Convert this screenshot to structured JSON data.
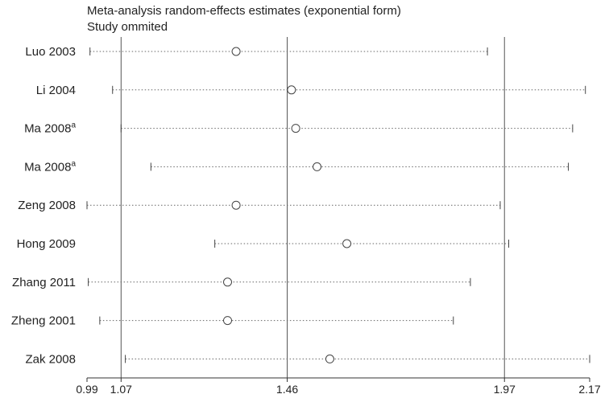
{
  "chart_data": {
    "type": "scatter",
    "title": "Meta-analysis random-effects estimates (exponential form)",
    "subtitle": "Study ommited",
    "xlabel": "",
    "ylabel": "",
    "xlim": [
      0.99,
      2.17
    ],
    "reference_lines": [
      1.07,
      1.46,
      1.97
    ],
    "x_ticks": [
      "0.99",
      "1.07",
      "1.46",
      "1.97",
      "2.17"
    ],
    "studies": [
      {
        "label": "Luo 2003",
        "sup": "",
        "estimate": 1.34,
        "ci_low": 0.997,
        "ci_high": 1.93
      },
      {
        "label": "Li 2004",
        "sup": "",
        "estimate": 1.47,
        "ci_low": 1.05,
        "ci_high": 2.16
      },
      {
        "label": "Ma 2008",
        "sup": "a",
        "estimate": 1.48,
        "ci_low": 1.07,
        "ci_high": 2.13
      },
      {
        "label": "Ma 2008",
        "sup": "a",
        "estimate": 1.53,
        "ci_low": 1.14,
        "ci_high": 2.12
      },
      {
        "label": "Zeng 2008",
        "sup": "",
        "estimate": 1.34,
        "ci_low": 0.99,
        "ci_high": 1.96
      },
      {
        "label": "Hong 2009",
        "sup": "",
        "estimate": 1.6,
        "ci_low": 1.29,
        "ci_high": 1.98
      },
      {
        "label": "Zhang 2011",
        "sup": "",
        "estimate": 1.32,
        "ci_low": 0.993,
        "ci_high": 1.89
      },
      {
        "label": "Zheng 2001",
        "sup": "",
        "estimate": 1.32,
        "ci_low": 1.02,
        "ci_high": 1.85
      },
      {
        "label": "Zak 2008",
        "sup": "",
        "estimate": 1.56,
        "ci_low": 1.08,
        "ci_high": 2.17
      }
    ]
  }
}
